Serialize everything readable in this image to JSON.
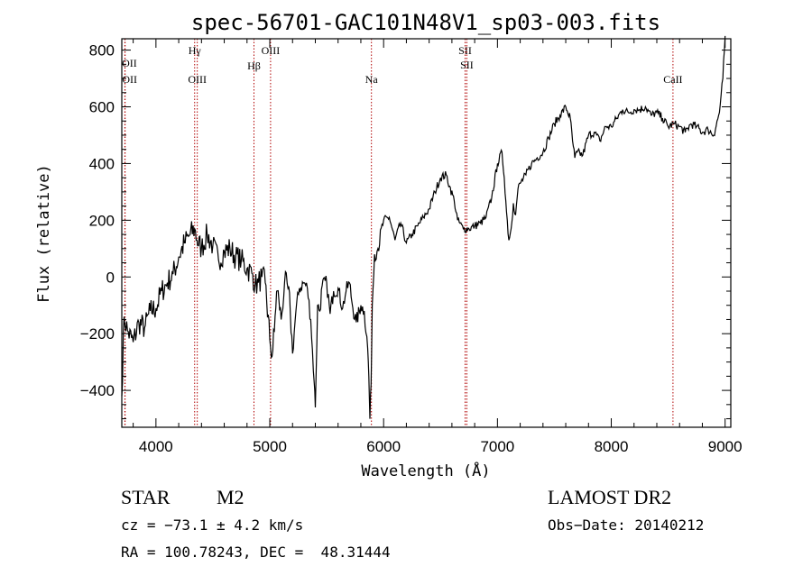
{
  "chart_data": {
    "type": "line",
    "title": "spec-56701-GAC101N48V1_sp03-003.fits",
    "xlabel": "Wavelength (Å)",
    "ylabel": "Flux (relative)",
    "xlim": [
      3700,
      9050
    ],
    "ylim": [
      -530,
      840
    ],
    "xticks": [
      4000,
      5000,
      6000,
      7000,
      8000,
      9000
    ],
    "yticks": [
      -400,
      -200,
      0,
      200,
      400,
      600,
      800
    ],
    "tick_labels_x": [
      "4000",
      "5000",
      "6000",
      "7000",
      "8000",
      "9000"
    ],
    "tick_labels_y": [
      "−400",
      "−200",
      "0",
      "200",
      "400",
      "600",
      "800"
    ],
    "series": [
      {
        "x": [
          3700,
          3720,
          3750,
          3800,
          3850,
          3900,
          3950,
          4000,
          4050,
          4100,
          4150,
          4200,
          4250,
          4300,
          4340,
          4360,
          4400,
          4450,
          4500,
          4550,
          4600,
          4650,
          4700,
          4750,
          4800,
          4850,
          4870,
          4900,
          4930,
          4960,
          5000,
          5020,
          5040,
          5060,
          5080,
          5100,
          5130,
          5160,
          5180,
          5200,
          5230,
          5260,
          5300,
          5330,
          5360,
          5390,
          5400,
          5420,
          5440,
          5460,
          5500,
          5530,
          5560,
          5600,
          5640,
          5670,
          5700,
          5730,
          5760,
          5800,
          5830,
          5860,
          5870,
          5880,
          5890,
          5900,
          5920,
          5950,
          6000,
          6050,
          6100,
          6150,
          6200,
          6250,
          6300,
          6350,
          6400,
          6450,
          6500,
          6550,
          6580,
          6620,
          6650,
          6700,
          6750,
          6800,
          6850,
          6900,
          6950,
          7000,
          7040,
          7060,
          7080,
          7100,
          7120,
          7140,
          7160,
          7180,
          7200,
          7250,
          7300,
          7350,
          7400,
          7450,
          7500,
          7550,
          7600,
          7640,
          7660,
          7680,
          7700,
          7750,
          7800,
          7850,
          7900,
          7950,
          8000,
          8050,
          8100,
          8150,
          8200,
          8250,
          8300,
          8350,
          8400,
          8450,
          8500,
          8550,
          8600,
          8650,
          8700,
          8750,
          8800,
          8850,
          8900,
          8950,
          8980,
          9000
        ],
        "y": [
          -420,
          -140,
          -190,
          -230,
          -160,
          -180,
          -120,
          -110,
          -50,
          -20,
          10,
          70,
          120,
          150,
          170,
          130,
          100,
          150,
          110,
          60,
          90,
          100,
          70,
          60,
          30,
          10,
          -30,
          -20,
          0,
          -20,
          -220,
          -280,
          -190,
          -50,
          -80,
          -150,
          -20,
          -40,
          -120,
          -270,
          -120,
          -40,
          -20,
          -40,
          -150,
          -370,
          -460,
          -100,
          -120,
          -30,
          -20,
          -130,
          -50,
          -40,
          -110,
          -50,
          -20,
          -110,
          -160,
          -100,
          -120,
          -250,
          -350,
          -500,
          -380,
          -100,
          80,
          100,
          200,
          210,
          130,
          190,
          120,
          150,
          180,
          210,
          240,
          300,
          350,
          360,
          320,
          270,
          200,
          170,
          170,
          180,
          190,
          210,
          280,
          400,
          440,
          350,
          230,
          130,
          170,
          260,
          220,
          310,
          330,
          360,
          400,
          420,
          440,
          490,
          540,
          570,
          600,
          560,
          480,
          420,
          440,
          430,
          500,
          510,
          480,
          530,
          530,
          560,
          590,
          580,
          590,
          590,
          600,
          570,
          580,
          560,
          530,
          540,
          530,
          510,
          540,
          530,
          510,
          520,
          500,
          580,
          700,
          850
        ]
      }
    ],
    "reference_lines": [
      {
        "label": "OII",
        "x": 3727
      },
      {
        "label": "OII",
        "x": 3729
      },
      {
        "label": "Hγ",
        "x": 4340
      },
      {
        "label": "OIII",
        "x": 4363
      },
      {
        "label": "Hβ",
        "x": 4861
      },
      {
        "label": "OIII",
        "x": 5007
      },
      {
        "label": "Na",
        "x": 5893
      },
      {
        "label": "SII",
        "x": 6716
      },
      {
        "label": "SII",
        "x": 6731
      },
      {
        "label": "CaII",
        "x": 8542
      }
    ],
    "grid": false,
    "legend": "none"
  },
  "info": {
    "object_type": "STAR",
    "subclass": "M2",
    "survey": "LAMOST DR2",
    "cz_line": "cz = −73.1 ± 4.2 km/s",
    "obs_date_line": "Obs−Date: 20140212",
    "radec_line": "RA = 100.78243, DEC =  48.31444"
  },
  "colors": {
    "spectrum": "#000000",
    "reference_line": "#b00000",
    "axis": "#000000"
  }
}
